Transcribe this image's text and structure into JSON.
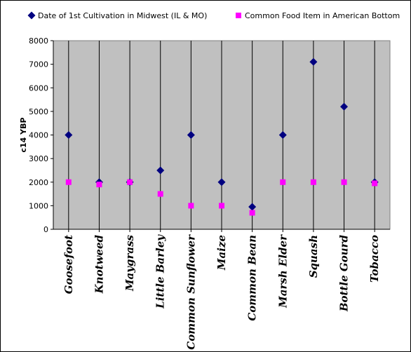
{
  "chart_data": {
    "type": "scatter",
    "categories": [
      "Goosefoot",
      "Knotweed",
      "Maygrass",
      "Little Barley",
      "Common Sunflower",
      "Maize",
      "Common Bean",
      "Marsh Elder",
      "Squash",
      "Bottle Gourd",
      "Tobacco"
    ],
    "series": [
      {
        "name": "Date of 1st Cultivation in Midwest (IL & MO)",
        "marker": "diamond",
        "color": "#000080",
        "values": [
          4000,
          2000,
          2000,
          2500,
          4000,
          2000,
          950,
          4000,
          7100,
          5200,
          2000
        ]
      },
      {
        "name": "Common Food Item in American Bottom",
        "marker": "square",
        "color": "#ff00ff",
        "values": [
          2000,
          1900,
          2000,
          1500,
          1000,
          1000,
          700,
          2000,
          2000,
          2000,
          1950
        ]
      }
    ],
    "ylabel": "c14 YBP",
    "xlabel": "",
    "ylim": [
      0,
      8000
    ],
    "yticks": [
      0,
      1000,
      2000,
      3000,
      4000,
      5000,
      6000,
      7000,
      8000
    ],
    "plot_background": "#c0c0c0",
    "drop_lines": true,
    "legend_position": "top"
  }
}
